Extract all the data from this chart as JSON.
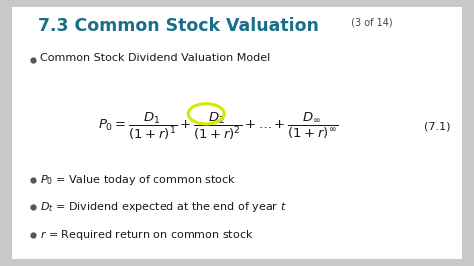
{
  "title_main": "7.3 Common Stock Valuation",
  "title_sub": " (3 of 14)",
  "title_color": "#1a6e8a",
  "title_sub_color": "#444444",
  "bg_color": "#c8c8c8",
  "slide_bg": "#ffffff",
  "bullet1": "Common Stock Dividend Valuation Model",
  "eq_label": "(7.1)",
  "circle_color": "#d4e800",
  "text_color": "#1a1a1a",
  "bullet_dot_color": "#555555"
}
